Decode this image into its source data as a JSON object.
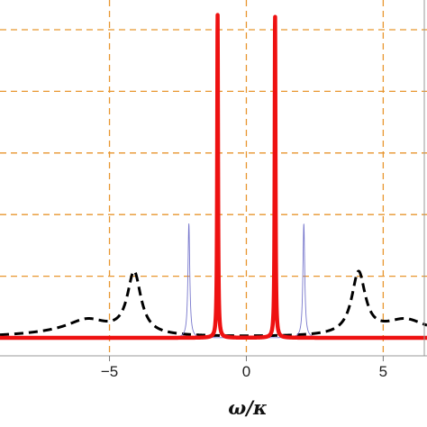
{
  "chart_data": {
    "type": "line",
    "title": "",
    "xlabel": "ω/κ",
    "ylabel": "",
    "xlim": [
      -9,
      6.6
    ],
    "ylim": [
      0,
      1
    ],
    "x_ticks": [
      -5,
      0,
      5
    ],
    "x_tick_labels": [
      "−5",
      "0",
      "5"
    ],
    "grid": true,
    "grid_x": [
      -5,
      0,
      5
    ],
    "grid_y": [
      0.2,
      0.4,
      0.6,
      0.8,
      1.0
    ],
    "series": [
      {
        "color": "#000000",
        "style": "dashed",
        "peaks": [
          {
            "x": -4.1,
            "height": 0.2,
            "width": 0.3
          },
          {
            "x": 4.1,
            "height": 0.2,
            "width": 0.3
          },
          {
            "x": -5.8,
            "height": 0.045,
            "width": 0.9
          },
          {
            "x": 5.8,
            "height": 0.045,
            "width": 0.9
          },
          {
            "x": -6.5,
            "height": 0.012,
            "width": 2.2
          },
          {
            "x": 6.5,
            "height": 0.012,
            "width": 2.2
          }
        ]
      },
      {
        "color": "#7777cc",
        "style": "solid",
        "peaks": [
          {
            "x": -2.1,
            "height": 0.37,
            "width": 0.04
          },
          {
            "x": 2.1,
            "height": 0.37,
            "width": 0.04
          }
        ]
      },
      {
        "color": "#ee1111",
        "style": "solid",
        "peaks": [
          {
            "x": -1.05,
            "height": 1.05,
            "width": 0.018
          },
          {
            "x": 1.05,
            "height": 1.05,
            "width": 0.018
          }
        ]
      }
    ]
  }
}
